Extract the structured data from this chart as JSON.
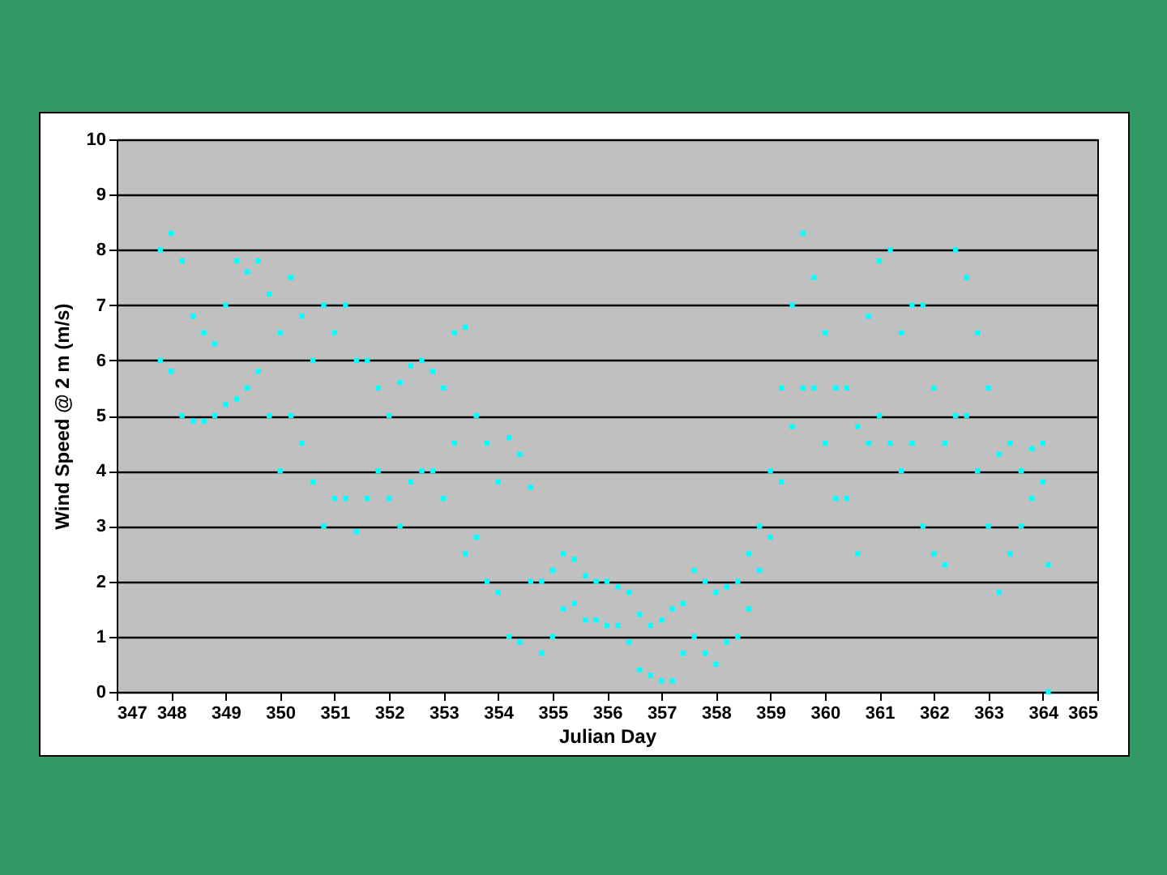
{
  "chart_data": {
    "type": "scatter",
    "xlabel": "Julian Day",
    "ylabel": "Wind Speed @ 2 m (m/s)",
    "xlim": [
      347,
      365
    ],
    "xticks": [
      347,
      348,
      349,
      350,
      351,
      352,
      353,
      354,
      355,
      356,
      357,
      358,
      359,
      360,
      361,
      362,
      363,
      364,
      365
    ],
    "ylim": [
      0,
      10
    ],
    "yticks": [
      0,
      1,
      2,
      3,
      4,
      5,
      6,
      7,
      8,
      9,
      10
    ],
    "grid": "y",
    "marker": "square",
    "series": [
      {
        "color": "#00ffff",
        "x": [
          347.8,
          347.8,
          348.0,
          348.0,
          348.2,
          348.2,
          348.4,
          348.4,
          348.6,
          348.6,
          348.8,
          348.8,
          349.0,
          349.0,
          349.2,
          349.2,
          349.4,
          349.4,
          349.6,
          349.6,
          349.8,
          349.8,
          350.0,
          350.0,
          350.2,
          350.2,
          350.4,
          350.4,
          350.6,
          350.6,
          350.8,
          350.8,
          351.0,
          351.0,
          351.2,
          351.2,
          351.4,
          351.4,
          351.6,
          351.6,
          351.8,
          351.8,
          352.0,
          352.0,
          352.2,
          352.2,
          352.4,
          352.4,
          352.6,
          352.6,
          352.8,
          352.8,
          353.0,
          353.0,
          353.2,
          353.2,
          353.4,
          353.4,
          353.6,
          353.6,
          353.8,
          353.8,
          354.0,
          354.0,
          354.2,
          354.2,
          354.4,
          354.4,
          354.6,
          354.6,
          354.8,
          354.8,
          355.0,
          355.0,
          355.2,
          355.2,
          355.4,
          355.4,
          355.6,
          355.6,
          355.8,
          355.8,
          356.0,
          356.0,
          356.2,
          356.2,
          356.4,
          356.4,
          356.6,
          356.6,
          356.8,
          356.8,
          357.0,
          357.0,
          357.2,
          357.2,
          357.4,
          357.4,
          357.6,
          357.6,
          357.8,
          357.8,
          358.0,
          358.0,
          358.2,
          358.2,
          358.4,
          358.4,
          358.6,
          358.6,
          358.8,
          358.8,
          359.0,
          359.0,
          359.2,
          359.2,
          359.4,
          359.4,
          359.6,
          359.6,
          359.8,
          359.8,
          360.0,
          360.0,
          360.2,
          360.2,
          360.4,
          360.4,
          360.6,
          360.6,
          360.8,
          360.8,
          361.0,
          361.0,
          361.2,
          361.2,
          361.4,
          361.4,
          361.6,
          361.6,
          361.8,
          361.8,
          362.0,
          362.0,
          362.2,
          362.2,
          362.4,
          362.4,
          362.6,
          362.6,
          362.8,
          362.8,
          363.0,
          363.0,
          363.2,
          363.2,
          363.4,
          363.4,
          363.6,
          363.6,
          363.8,
          363.8,
          364.0,
          364.0,
          364.1,
          364.1
        ],
        "values": [
          6.0,
          8.0,
          5.8,
          8.3,
          5.0,
          7.8,
          4.9,
          6.8,
          4.9,
          6.5,
          5.0,
          6.3,
          5.2,
          7.0,
          5.3,
          7.8,
          5.5,
          7.6,
          5.8,
          7.8,
          5.0,
          7.2,
          4.0,
          6.5,
          5.0,
          7.5,
          4.5,
          6.8,
          3.8,
          6.0,
          3.0,
          7.0,
          3.5,
          6.5,
          3.5,
          7.0,
          2.9,
          6.0,
          3.5,
          6.0,
          4.0,
          5.5,
          3.5,
          5.0,
          3.0,
          5.6,
          3.8,
          5.9,
          4.0,
          6.0,
          4.0,
          5.8,
          3.5,
          5.5,
          4.5,
          6.5,
          2.5,
          6.6,
          2.8,
          5.0,
          2.0,
          4.5,
          1.8,
          3.8,
          1.0,
          4.6,
          0.9,
          4.3,
          2.0,
          3.7,
          0.7,
          2.0,
          1.0,
          2.2,
          1.5,
          2.5,
          1.6,
          2.4,
          1.3,
          2.1,
          1.3,
          2.0,
          1.2,
          2.0,
          1.2,
          1.9,
          0.9,
          1.8,
          0.4,
          1.4,
          0.3,
          1.2,
          0.2,
          1.3,
          0.2,
          1.5,
          0.7,
          1.6,
          1.0,
          2.2,
          0.7,
          2.0,
          0.5,
          1.8,
          0.9,
          1.9,
          1.0,
          2.0,
          1.5,
          2.5,
          2.2,
          3.0,
          2.8,
          4.0,
          3.8,
          5.5,
          4.8,
          7.0,
          5.5,
          8.3,
          5.5,
          7.5,
          4.5,
          6.5,
          3.5,
          5.5,
          3.5,
          5.5,
          2.5,
          4.8,
          4.5,
          6.8,
          5.0,
          7.8,
          4.5,
          8.0,
          4.0,
          6.5,
          4.5,
          7.0,
          3.0,
          7.0,
          2.5,
          5.5,
          2.3,
          4.5,
          5.0,
          8.0,
          5.0,
          7.5,
          4.0,
          6.5,
          3.0,
          5.5,
          1.8,
          4.3,
          2.5,
          4.5,
          3.0,
          4.0,
          3.5,
          4.4,
          3.8,
          4.5,
          2.3,
          0.0
        ]
      }
    ]
  }
}
